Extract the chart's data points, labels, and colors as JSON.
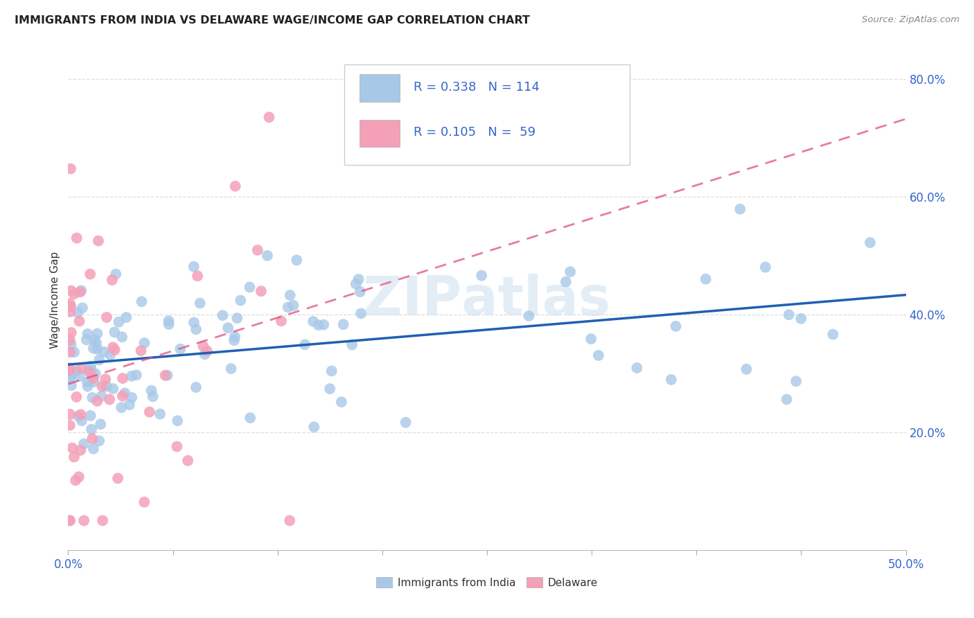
{
  "title": "IMMIGRANTS FROM INDIA VS DELAWARE WAGE/INCOME GAP CORRELATION CHART",
  "source": "Source: ZipAtlas.com",
  "ylabel": "Wage/Income Gap",
  "legend_label1": "Immigrants from India",
  "legend_label2": "Delaware",
  "color_blue": "#a8c8e8",
  "color_pink": "#f4a0b8",
  "color_blue_line": "#2060b0",
  "color_pink_line": "#e05080",
  "color_legend_text": "#3366cc",
  "xmin": 0.0,
  "xmax": 0.5,
  "ymin": 0.0,
  "ymax": 0.85
}
